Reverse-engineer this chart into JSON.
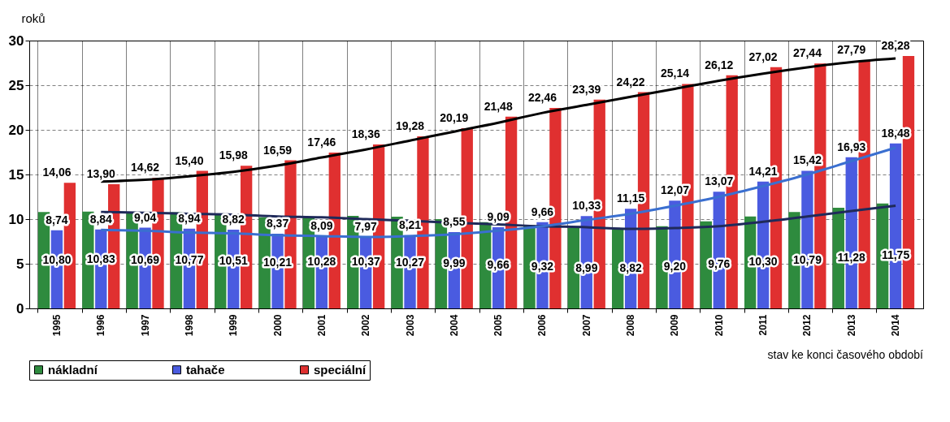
{
  "chart_data": {
    "type": "bar",
    "ylabel": "roků",
    "categories": [
      "1995",
      "1996",
      "1997",
      "1998",
      "1999",
      "2000",
      "2001",
      "2002",
      "2003",
      "2004",
      "2005",
      "2006",
      "2007",
      "2008",
      "2009",
      "2010",
      "2011",
      "2012",
      "2013",
      "2014"
    ],
    "series": [
      {
        "name": "nákladní",
        "color": "#2e8b3e",
        "values": [
          10.8,
          10.83,
          10.69,
          10.77,
          10.51,
          10.21,
          10.28,
          10.37,
          10.27,
          9.99,
          9.66,
          9.32,
          8.99,
          8.82,
          9.2,
          9.76,
          10.3,
          10.79,
          11.28,
          11.75
        ],
        "value_labels": [
          "10,80",
          "10,83",
          "10,69",
          "10,77",
          "10,51",
          "10,21",
          "10,28",
          "10,37",
          "10,27",
          "9,99",
          "9,66",
          "9,32",
          "8,99",
          "8,82",
          "9,20",
          "9,76",
          "10,30",
          "10,79",
          "11,28",
          "11,75"
        ]
      },
      {
        "name": "tahače",
        "color": "#4a5be0",
        "values": [
          8.74,
          8.84,
          9.04,
          8.94,
          8.82,
          8.37,
          8.09,
          7.97,
          8.21,
          8.55,
          9.09,
          9.66,
          10.33,
          11.15,
          12.07,
          13.07,
          14.21,
          15.42,
          16.93,
          18.48
        ],
        "value_labels": [
          "8,74",
          "8,84",
          "9,04",
          "8,94",
          "8,82",
          "8,37",
          "8,09",
          "7,97",
          "8,21",
          "8,55",
          "9,09",
          "9,66",
          "10,33",
          "11,15",
          "12,07",
          "13,07",
          "14,21",
          "15,42",
          "16,93",
          "18,48"
        ]
      },
      {
        "name": "speciální",
        "color": "#e03030",
        "values": [
          14.06,
          13.9,
          14.62,
          15.4,
          15.98,
          16.59,
          17.46,
          18.36,
          19.28,
          20.19,
          21.48,
          22.46,
          23.39,
          24.22,
          25.14,
          26.12,
          27.02,
          27.44,
          27.79,
          28.28
        ],
        "value_labels": [
          "14,06",
          "13,90",
          "14,62",
          "15,40",
          "15,98",
          "16,59",
          "17,46",
          "18,36",
          "19,28",
          "20,19",
          "21,48",
          "22,46",
          "23,39",
          "24,22",
          "25,14",
          "26,12",
          "27,02",
          "27,44",
          "27,79",
          "28,28"
        ]
      },
      {
        "type": "line",
        "color": "#1f2a5a",
        "line_style": "solid",
        "values": [
          null,
          10.8,
          10.7,
          10.6,
          10.5,
          10.3,
          10.2,
          10.0,
          9.8,
          9.6,
          9.4,
          9.2,
          9.1,
          8.9,
          9.0,
          9.2,
          9.7,
          10.3,
          10.9,
          11.5
        ]
      },
      {
        "type": "line",
        "color": "#3a6fd0",
        "line_style": "solid",
        "values": [
          null,
          8.8,
          8.7,
          8.5,
          8.4,
          8.2,
          8.1,
          8.0,
          8.1,
          8.3,
          8.7,
          9.2,
          9.9,
          10.6,
          11.5,
          12.5,
          13.7,
          15.0,
          16.5,
          18.0
        ]
      },
      {
        "type": "line",
        "color": "#000000",
        "line_style": "solid",
        "values": [
          null,
          14.2,
          14.4,
          14.8,
          15.3,
          16.0,
          16.9,
          17.8,
          18.8,
          19.8,
          20.8,
          21.9,
          22.8,
          23.7,
          24.6,
          25.5,
          26.3,
          27.0,
          27.6,
          28.0
        ]
      }
    ],
    "ylim": [
      0,
      30
    ],
    "yticks": [
      0,
      5,
      10,
      15,
      20,
      25,
      30
    ],
    "grid": true,
    "legend": "bottom",
    "annotations": [
      "stav ke konci časového období"
    ]
  }
}
